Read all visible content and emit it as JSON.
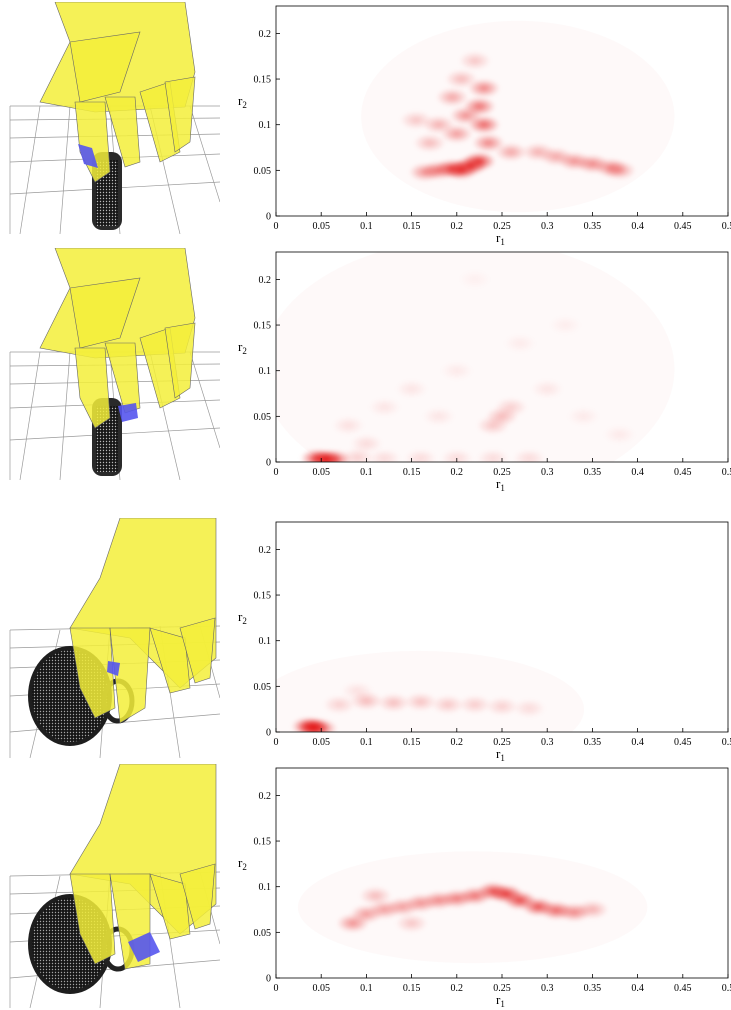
{
  "chart_data": [
    {
      "type": "heatmap",
      "xlabel": "r",
      "xlabel_sub": "1",
      "ylabel": "r",
      "ylabel_sub": "2",
      "xlim": [
        0,
        0.5
      ],
      "ylim": [
        0,
        0.23
      ],
      "x_ticks": [
        "0",
        "0.05",
        "0.1",
        "0.15",
        "0.2",
        "0.25",
        "0.3",
        "0.35",
        "0.4",
        "0.45",
        "0.5"
      ],
      "y_ticks": [
        "0",
        "0.05",
        "0.1",
        "0.15",
        "0.2"
      ],
      "color": "#e00000",
      "blobs": [
        {
          "x": 0.215,
          "y": 0.055,
          "w": 0.9
        },
        {
          "x": 0.205,
          "y": 0.05,
          "w": 0.85
        },
        {
          "x": 0.195,
          "y": 0.052,
          "w": 0.8
        },
        {
          "x": 0.18,
          "y": 0.05,
          "w": 0.6
        },
        {
          "x": 0.165,
          "y": 0.048,
          "w": 0.5
        },
        {
          "x": 0.225,
          "y": 0.06,
          "w": 0.9
        },
        {
          "x": 0.23,
          "y": 0.1,
          "w": 0.7
        },
        {
          "x": 0.225,
          "y": 0.12,
          "w": 0.65
        },
        {
          "x": 0.23,
          "y": 0.14,
          "w": 0.55
        },
        {
          "x": 0.21,
          "y": 0.11,
          "w": 0.5
        },
        {
          "x": 0.2,
          "y": 0.09,
          "w": 0.45
        },
        {
          "x": 0.195,
          "y": 0.13,
          "w": 0.4
        },
        {
          "x": 0.18,
          "y": 0.1,
          "w": 0.35
        },
        {
          "x": 0.17,
          "y": 0.08,
          "w": 0.3
        },
        {
          "x": 0.155,
          "y": 0.105,
          "w": 0.25
        },
        {
          "x": 0.22,
          "y": 0.17,
          "w": 0.25
        },
        {
          "x": 0.205,
          "y": 0.15,
          "w": 0.3
        },
        {
          "x": 0.235,
          "y": 0.08,
          "w": 0.55
        },
        {
          "x": 0.26,
          "y": 0.07,
          "w": 0.4
        },
        {
          "x": 0.29,
          "y": 0.07,
          "w": 0.35
        },
        {
          "x": 0.31,
          "y": 0.065,
          "w": 0.4
        },
        {
          "x": 0.33,
          "y": 0.06,
          "w": 0.5
        },
        {
          "x": 0.35,
          "y": 0.057,
          "w": 0.55
        },
        {
          "x": 0.37,
          "y": 0.053,
          "w": 0.5
        },
        {
          "x": 0.38,
          "y": 0.05,
          "w": 0.45
        }
      ]
    },
    {
      "type": "heatmap",
      "xlabel": "r",
      "xlabel_sub": "1",
      "ylabel": "r",
      "ylabel_sub": "2",
      "xlim": [
        0,
        0.5
      ],
      "ylim": [
        0,
        0.23
      ],
      "x_ticks": [
        "0",
        "0.05",
        "0.1",
        "0.15",
        "0.2",
        "0.25",
        "0.3",
        "0.35",
        "0.4",
        "0.45",
        "0.5"
      ],
      "y_ticks": [
        "0",
        "0.05",
        "0.1",
        "0.15",
        "0.2"
      ],
      "color": "#e00000",
      "blobs": [
        {
          "x": 0.055,
          "y": 0.003,
          "w": 1.0
        },
        {
          "x": 0.045,
          "y": 0.004,
          "w": 0.8
        },
        {
          "x": 0.065,
          "y": 0.003,
          "w": 0.7
        },
        {
          "x": 0.09,
          "y": 0.005,
          "w": 0.2
        },
        {
          "x": 0.12,
          "y": 0.004,
          "w": 0.15
        },
        {
          "x": 0.16,
          "y": 0.004,
          "w": 0.15
        },
        {
          "x": 0.2,
          "y": 0.004,
          "w": 0.15
        },
        {
          "x": 0.24,
          "y": 0.004,
          "w": 0.15
        },
        {
          "x": 0.28,
          "y": 0.004,
          "w": 0.15
        },
        {
          "x": 0.25,
          "y": 0.05,
          "w": 0.3
        },
        {
          "x": 0.24,
          "y": 0.04,
          "w": 0.25
        },
        {
          "x": 0.26,
          "y": 0.06,
          "w": 0.2
        },
        {
          "x": 0.08,
          "y": 0.04,
          "w": 0.12
        },
        {
          "x": 0.12,
          "y": 0.06,
          "w": 0.1
        },
        {
          "x": 0.15,
          "y": 0.08,
          "w": 0.1
        },
        {
          "x": 0.18,
          "y": 0.05,
          "w": 0.1
        },
        {
          "x": 0.2,
          "y": 0.1,
          "w": 0.08
        },
        {
          "x": 0.3,
          "y": 0.08,
          "w": 0.1
        },
        {
          "x": 0.34,
          "y": 0.05,
          "w": 0.08
        },
        {
          "x": 0.38,
          "y": 0.03,
          "w": 0.08
        },
        {
          "x": 0.27,
          "y": 0.13,
          "w": 0.07
        },
        {
          "x": 0.32,
          "y": 0.15,
          "w": 0.06
        },
        {
          "x": 0.22,
          "y": 0.2,
          "w": 0.05
        },
        {
          "x": 0.1,
          "y": 0.02,
          "w": 0.15
        }
      ]
    },
    {
      "type": "heatmap",
      "xlabel": "r",
      "xlabel_sub": "1",
      "ylabel": "r",
      "ylabel_sub": "2",
      "xlim": [
        0,
        0.5
      ],
      "ylim": [
        0,
        0.23
      ],
      "x_ticks": [
        "0",
        "0.05",
        "0.1",
        "0.15",
        "0.2",
        "0.25",
        "0.3",
        "0.35",
        "0.4",
        "0.45",
        "0.5"
      ],
      "y_ticks": [
        "0",
        "0.05",
        "0.1",
        "0.15",
        "0.2"
      ],
      "color": "#e00000",
      "blobs": [
        {
          "x": 0.042,
          "y": 0.005,
          "w": 1.0
        },
        {
          "x": 0.035,
          "y": 0.006,
          "w": 0.8
        },
        {
          "x": 0.05,
          "y": 0.004,
          "w": 0.6
        },
        {
          "x": 0.07,
          "y": 0.03,
          "w": 0.2
        },
        {
          "x": 0.1,
          "y": 0.034,
          "w": 0.3
        },
        {
          "x": 0.13,
          "y": 0.032,
          "w": 0.28
        },
        {
          "x": 0.16,
          "y": 0.033,
          "w": 0.26
        },
        {
          "x": 0.19,
          "y": 0.03,
          "w": 0.24
        },
        {
          "x": 0.22,
          "y": 0.03,
          "w": 0.22
        },
        {
          "x": 0.25,
          "y": 0.028,
          "w": 0.2
        },
        {
          "x": 0.28,
          "y": 0.026,
          "w": 0.15
        },
        {
          "x": 0.09,
          "y": 0.045,
          "w": 0.12
        }
      ]
    },
    {
      "type": "heatmap",
      "xlabel": "r",
      "xlabel_sub": "1",
      "ylabel": "r",
      "ylabel_sub": "2",
      "xlim": [
        0,
        0.5
      ],
      "ylim": [
        0,
        0.23
      ],
      "x_ticks": [
        "0",
        "0.05",
        "0.1",
        "0.15",
        "0.2",
        "0.25",
        "0.3",
        "0.35",
        "0.4",
        "0.45",
        "0.5"
      ],
      "y_ticks": [
        "0",
        "0.05",
        "0.1",
        "0.15",
        "0.2"
      ],
      "color": "#e00000",
      "blobs": [
        {
          "x": 0.085,
          "y": 0.06,
          "w": 0.5
        },
        {
          "x": 0.1,
          "y": 0.07,
          "w": 0.45
        },
        {
          "x": 0.12,
          "y": 0.075,
          "w": 0.45
        },
        {
          "x": 0.14,
          "y": 0.078,
          "w": 0.45
        },
        {
          "x": 0.16,
          "y": 0.082,
          "w": 0.5
        },
        {
          "x": 0.18,
          "y": 0.085,
          "w": 0.55
        },
        {
          "x": 0.2,
          "y": 0.087,
          "w": 0.6
        },
        {
          "x": 0.22,
          "y": 0.09,
          "w": 0.65
        },
        {
          "x": 0.24,
          "y": 0.095,
          "w": 0.8
        },
        {
          "x": 0.255,
          "y": 0.092,
          "w": 0.9
        },
        {
          "x": 0.27,
          "y": 0.085,
          "w": 0.85
        },
        {
          "x": 0.29,
          "y": 0.078,
          "w": 0.8
        },
        {
          "x": 0.31,
          "y": 0.074,
          "w": 0.7
        },
        {
          "x": 0.33,
          "y": 0.072,
          "w": 0.55
        },
        {
          "x": 0.35,
          "y": 0.075,
          "w": 0.35
        },
        {
          "x": 0.11,
          "y": 0.09,
          "w": 0.3
        },
        {
          "x": 0.15,
          "y": 0.06,
          "w": 0.25
        }
      ]
    }
  ],
  "thumbs": [
    {
      "hand": "#f3ef3a",
      "patch": "#5555ee"
    },
    {
      "hand": "#f3ef3a",
      "patch": "#5555ee"
    },
    {
      "hand": "#f3ef3a",
      "patch": "#5555ee"
    },
    {
      "hand": "#f3ef3a",
      "patch": "#5555ee"
    }
  ]
}
